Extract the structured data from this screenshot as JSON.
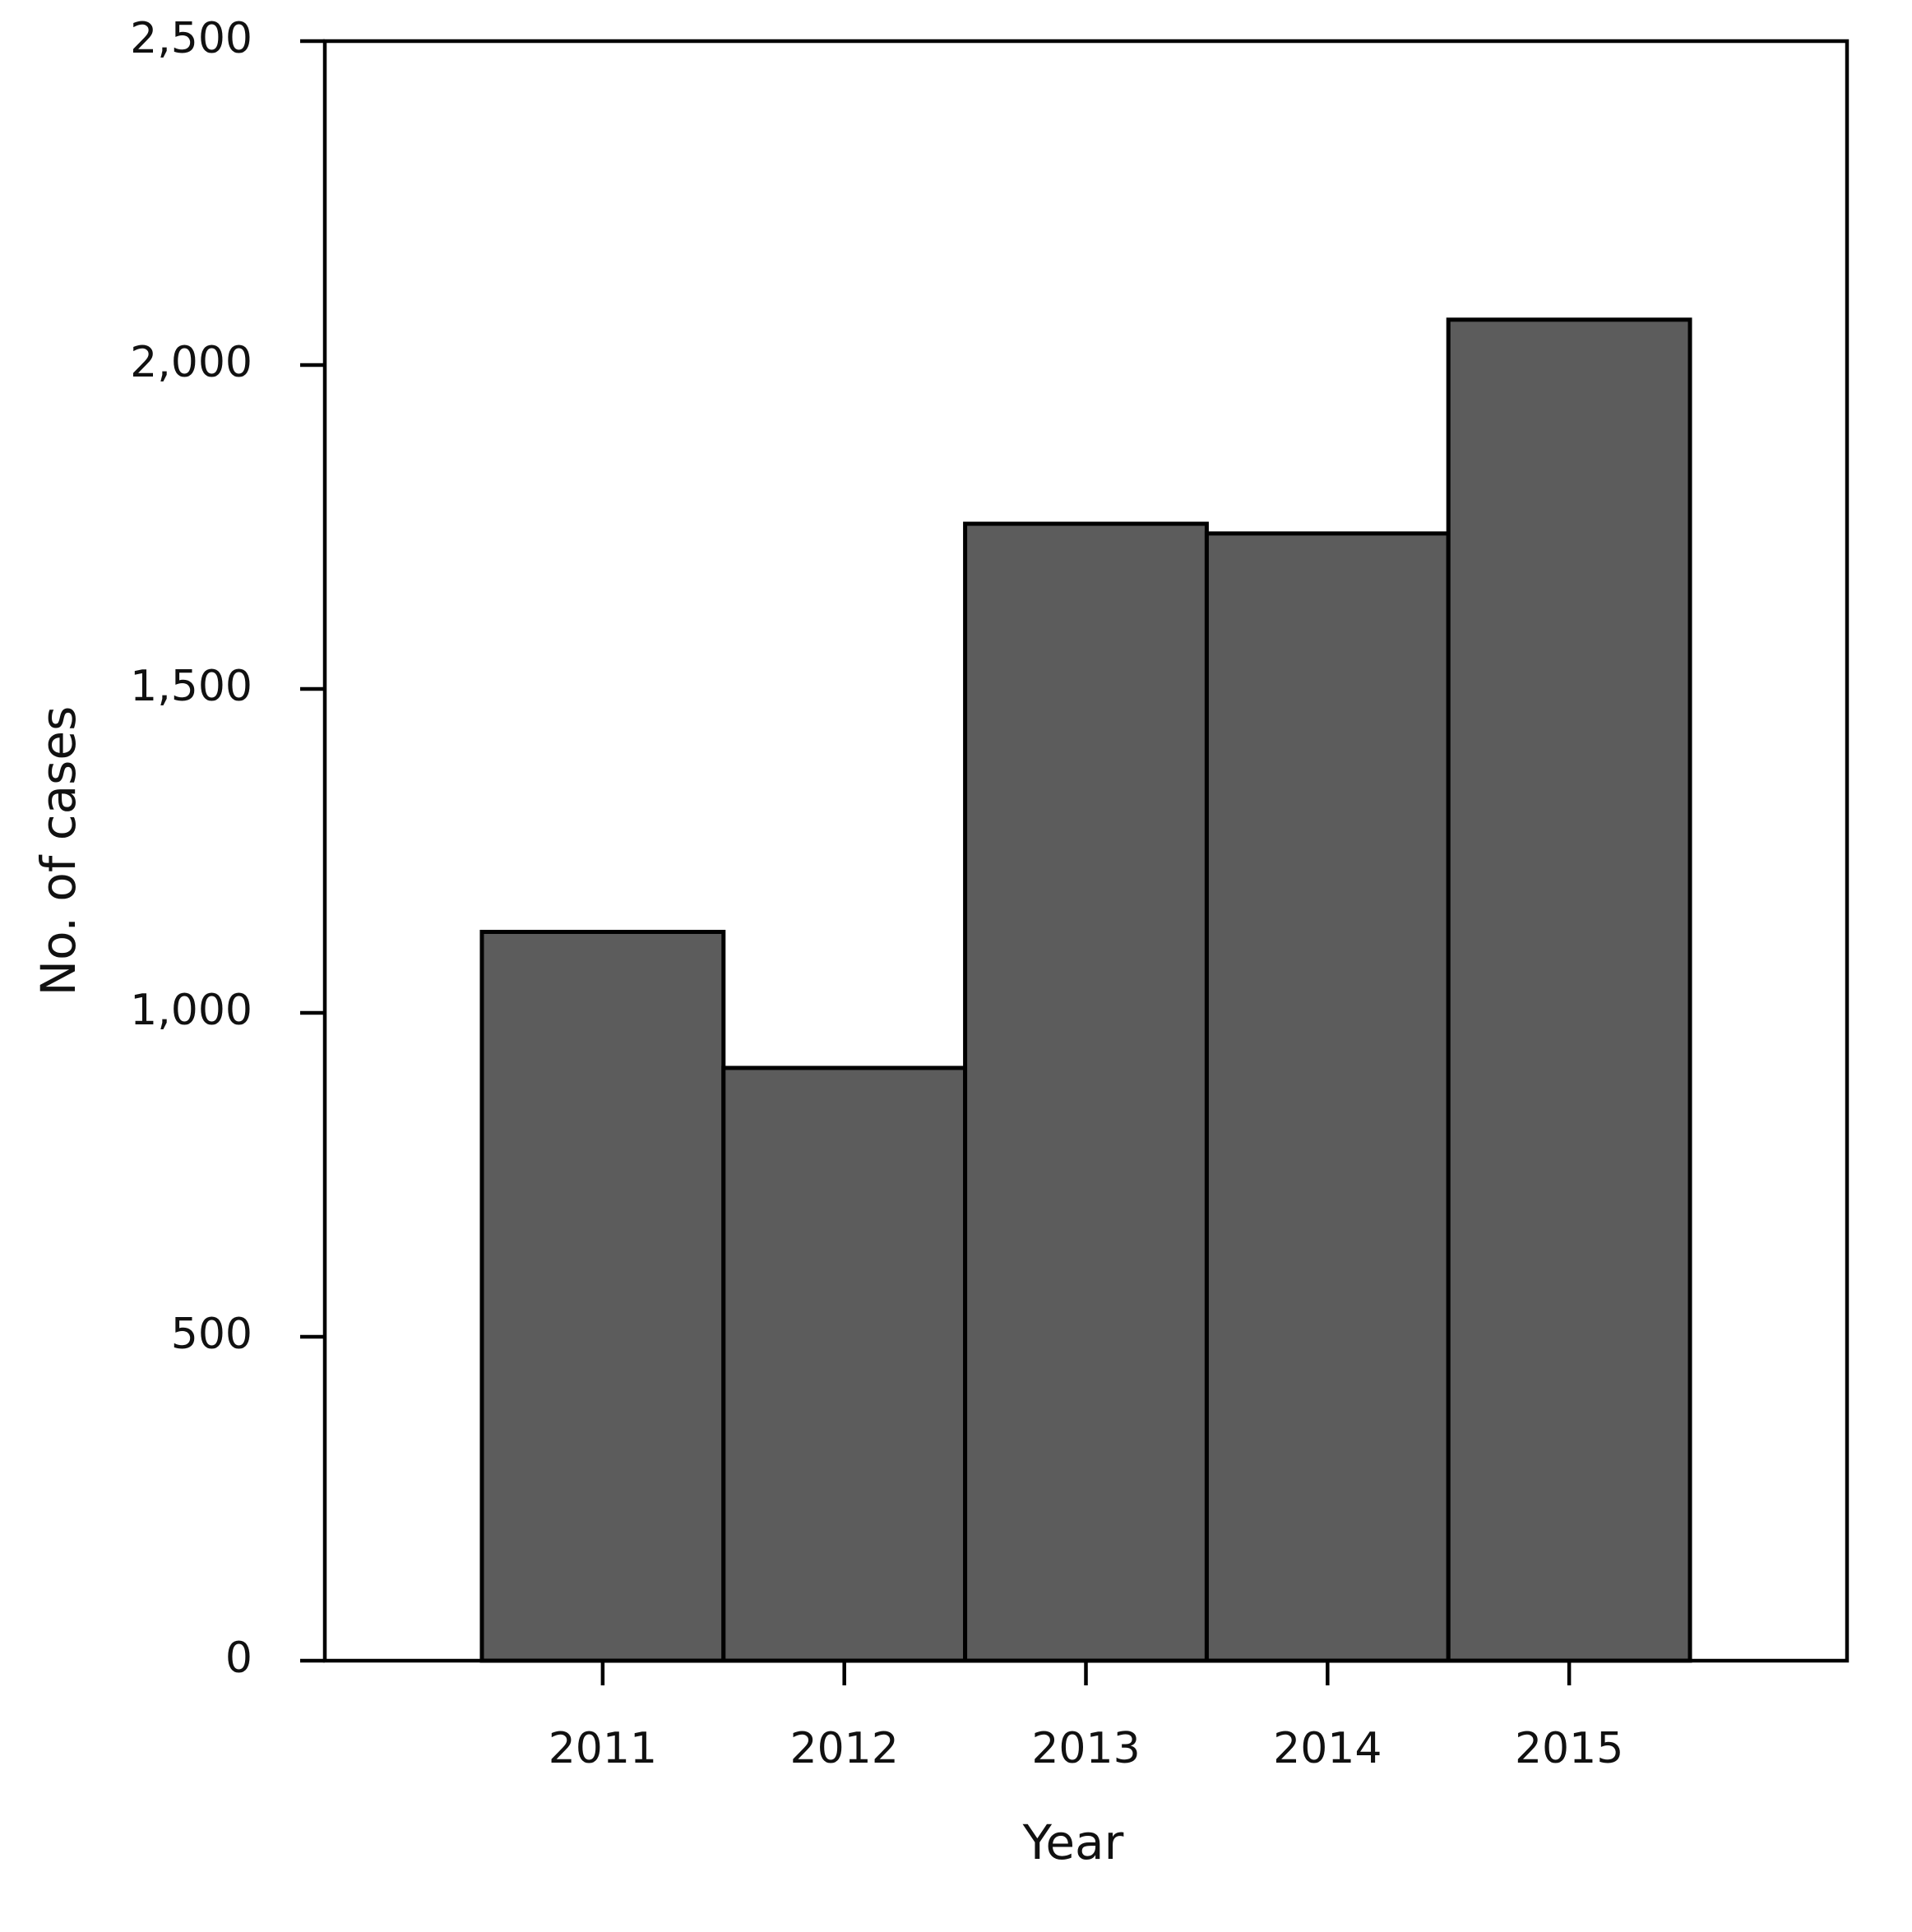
{
  "chart_data": {
    "type": "bar",
    "x_label": "Year",
    "y_label": "No. of cases",
    "categories": [
      "2011",
      "2012",
      "2013",
      "2014",
      "2015"
    ],
    "values": [
      1125,
      915,
      1755,
      1740,
      2070
    ],
    "color": "#5c5c5c",
    "ylim": [
      0,
      2500
    ],
    "yticks": [
      0,
      500,
      {
        "value": 1000,
        "label": "1,000"
      },
      {
        "value": 1500,
        "label": "1,500"
      },
      {
        "value": 2000,
        "label": "2,000"
      },
      {
        "value": 2500,
        "label": "2,500"
      }
    ],
    "grid": false
  }
}
